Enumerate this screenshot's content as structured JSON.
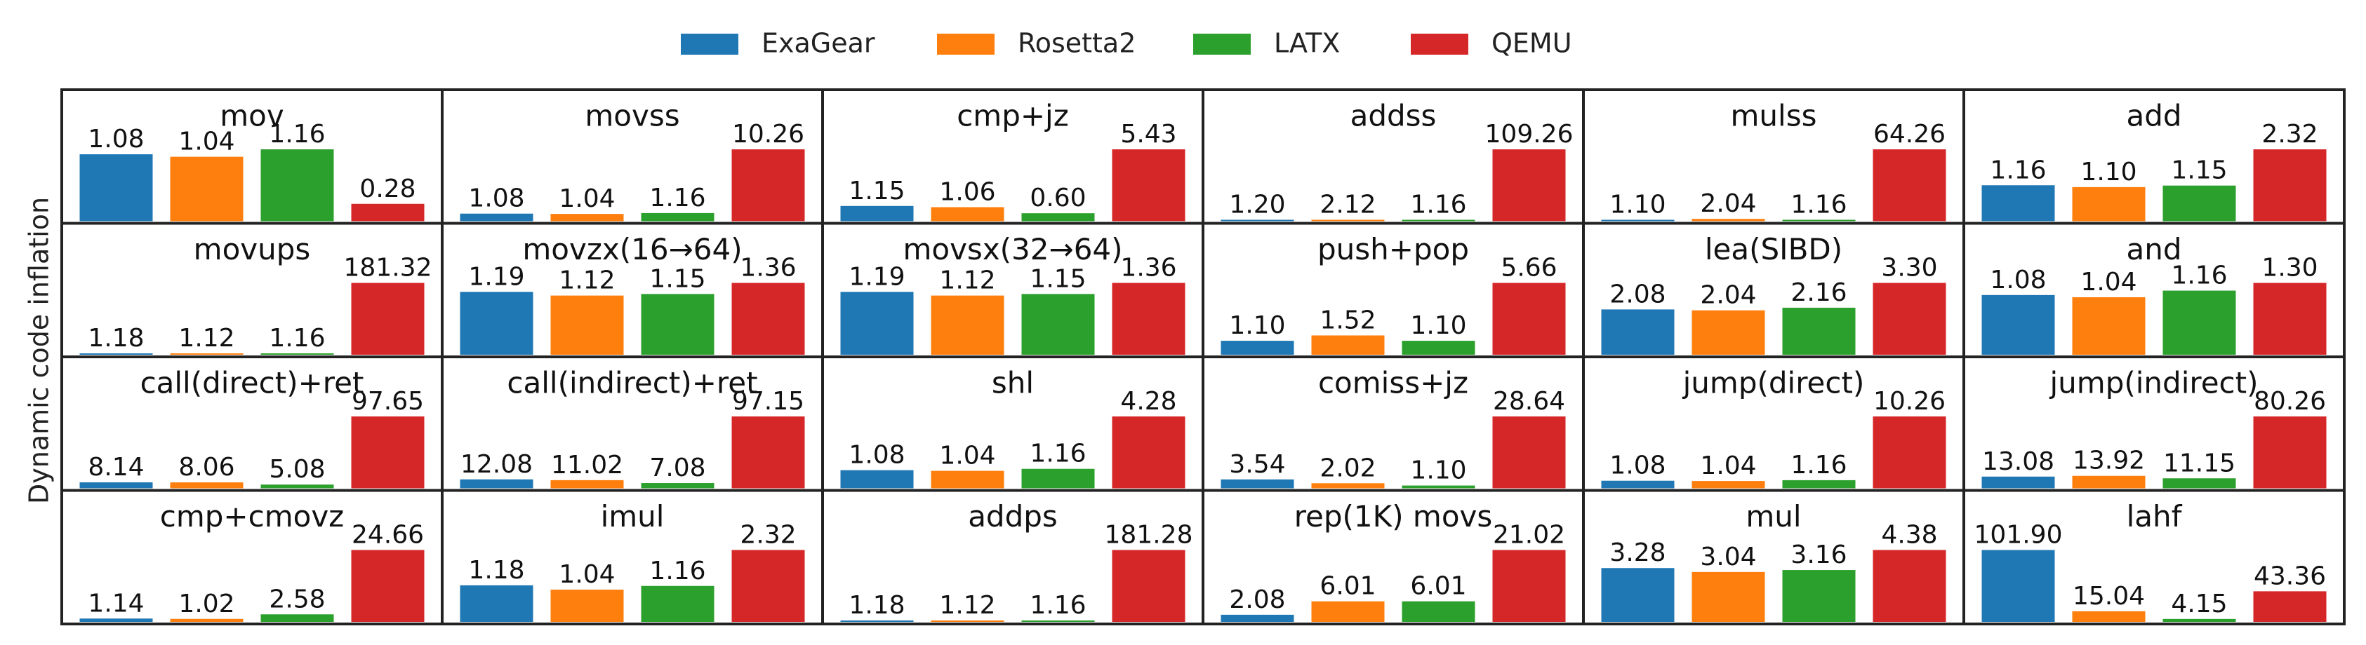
{
  "chart_data": {
    "type": "bar",
    "ylabel": "Dynamic code inflation",
    "series_names": [
      "ExaGear",
      "Rosetta2",
      "LATX",
      "QEMU"
    ],
    "colors": {
      "ExaGear": "#1f77b4",
      "Rosetta2": "#ff7f0e",
      "LATX": "#2ca02c",
      "QEMU": "#d62728"
    },
    "legend_position": "top-center",
    "grid": false,
    "layout": {
      "rows": 4,
      "cols": 6
    },
    "panels": [
      {
        "title": "mov",
        "values": [
          1.08,
          1.04,
          1.16,
          0.28
        ],
        "labels": [
          "1.08",
          "1.04",
          "1.16",
          "0.28"
        ]
      },
      {
        "title": "movss",
        "values": [
          1.08,
          1.04,
          1.16,
          10.26
        ],
        "labels": [
          "1.08",
          "1.04",
          "1.16",
          "10.26"
        ]
      },
      {
        "title": "cmp+jz",
        "values": [
          1.15,
          1.06,
          0.6,
          5.43
        ],
        "labels": [
          "1.15",
          "1.06",
          "0.60",
          "5.43"
        ]
      },
      {
        "title": "addss",
        "values": [
          1.2,
          2.12,
          1.16,
          109.26
        ],
        "labels": [
          "1.20",
          "2.12",
          "1.16",
          "109.26"
        ]
      },
      {
        "title": "mulss",
        "values": [
          1.1,
          2.04,
          1.16,
          64.26
        ],
        "labels": [
          "1.10",
          "2.04",
          "1.16",
          "64.26"
        ]
      },
      {
        "title": "add",
        "values": [
          1.16,
          1.1,
          1.15,
          2.32
        ],
        "labels": [
          "1.16",
          "1.10",
          "1.15",
          "2.32"
        ]
      },
      {
        "title": "movups",
        "values": [
          1.18,
          1.12,
          1.16,
          181.32
        ],
        "labels": [
          "1.18",
          "1.12",
          "1.16",
          "181.32"
        ]
      },
      {
        "title": "movzx(16→64)",
        "values": [
          1.19,
          1.12,
          1.15,
          1.36
        ],
        "labels": [
          "1.19",
          "1.12",
          "1.15",
          "1.36"
        ]
      },
      {
        "title": "movsx(32→64)",
        "values": [
          1.19,
          1.12,
          1.15,
          1.36
        ],
        "labels": [
          "1.19",
          "1.12",
          "1.15",
          "1.36"
        ]
      },
      {
        "title": "push+pop",
        "values": [
          1.1,
          1.52,
          1.1,
          5.66
        ],
        "labels": [
          "1.10",
          "1.52",
          "1.10",
          "5.66"
        ]
      },
      {
        "title": "lea(SIBD)",
        "values": [
          2.08,
          2.04,
          2.16,
          3.3
        ],
        "labels": [
          "2.08",
          "2.04",
          "2.16",
          "3.30"
        ]
      },
      {
        "title": "and",
        "values": [
          1.08,
          1.04,
          1.16,
          1.3
        ],
        "labels": [
          "1.08",
          "1.04",
          "1.16",
          "1.30"
        ]
      },
      {
        "title": "call(direct)+ret",
        "values": [
          8.14,
          8.06,
          5.08,
          97.65
        ],
        "labels": [
          "8.14",
          "8.06",
          "5.08",
          "97.65"
        ]
      },
      {
        "title": "call(indirect)+ret",
        "values": [
          12.08,
          11.02,
          7.08,
          97.15
        ],
        "labels": [
          "12.08",
          "11.02",
          "7.08",
          "97.15"
        ]
      },
      {
        "title": "shl",
        "values": [
          1.08,
          1.04,
          1.16,
          4.28
        ],
        "labels": [
          "1.08",
          "1.04",
          "1.16",
          "4.28"
        ]
      },
      {
        "title": "comiss+jz",
        "values": [
          3.54,
          2.02,
          1.1,
          28.64
        ],
        "labels": [
          "3.54",
          "2.02",
          "1.10",
          "28.64"
        ]
      },
      {
        "title": "jump(direct)",
        "values": [
          1.08,
          1.04,
          1.16,
          10.26
        ],
        "labels": [
          "1.08",
          "1.04",
          "1.16",
          "10.26"
        ]
      },
      {
        "title": "jump(indirect)",
        "values": [
          13.08,
          13.92,
          11.15,
          80.26
        ],
        "labels": [
          "13.08",
          "13.92",
          "11.15",
          "80.26"
        ]
      },
      {
        "title": "cmp+cmovz",
        "values": [
          1.14,
          1.02,
          2.58,
          24.66
        ],
        "labels": [
          "1.14",
          "1.02",
          "2.58",
          "24.66"
        ]
      },
      {
        "title": "imul",
        "values": [
          1.18,
          1.04,
          1.16,
          2.32
        ],
        "labels": [
          "1.18",
          "1.04",
          "1.16",
          "2.32"
        ]
      },
      {
        "title": "addps",
        "values": [
          1.18,
          1.12,
          1.16,
          181.28
        ],
        "labels": [
          "1.18",
          "1.12",
          "1.16",
          "181.28"
        ]
      },
      {
        "title": "rep(1K) movs",
        "values": [
          2.08,
          6.01,
          6.01,
          21.02
        ],
        "labels": [
          "2.08",
          "6.01",
          "6.01",
          "21.02"
        ]
      },
      {
        "title": "mul",
        "values": [
          3.28,
          3.04,
          3.16,
          4.38
        ],
        "labels": [
          "3.28",
          "3.04",
          "3.16",
          "4.38"
        ]
      },
      {
        "title": "lahf",
        "values": [
          101.9,
          15.04,
          4.15,
          43.36
        ],
        "labels": [
          "101.90",
          "15.04",
          "4.15",
          "43.36"
        ]
      }
    ]
  }
}
